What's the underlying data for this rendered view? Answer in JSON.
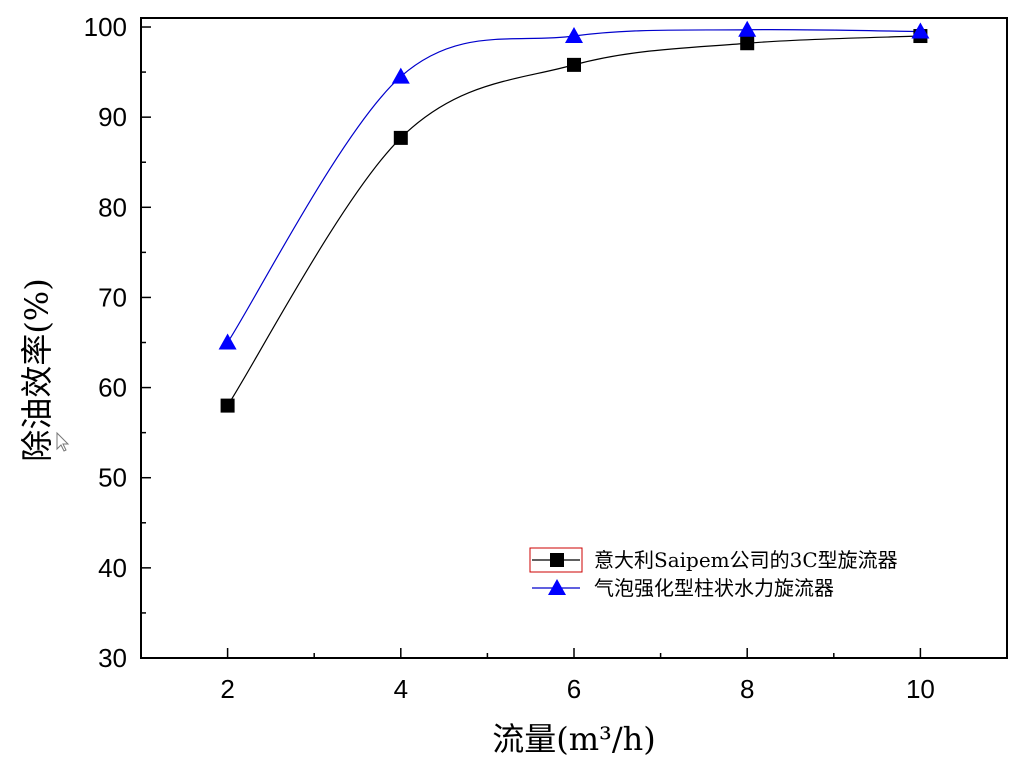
{
  "chart_data": {
    "type": "scatter",
    "xlabel": "流量(m³/h)",
    "ylabel": "除油效率(%)",
    "xlim": [
      1,
      11
    ],
    "ylim": [
      30,
      101
    ],
    "x_ticks": [
      2,
      4,
      6,
      8,
      10
    ],
    "y_ticks": [
      30,
      40,
      50,
      60,
      70,
      80,
      90,
      100
    ],
    "grid": false,
    "legend_position": "lower-right",
    "series": [
      {
        "name": "意大利Saipem公司的3C型旋流器",
        "marker": "square",
        "color": "#000000",
        "line_color": "#000000",
        "x": [
          2,
          4,
          6,
          8,
          10
        ],
        "y": [
          58,
          87.7,
          95.8,
          98.2,
          99
        ],
        "fit": "smooth"
      },
      {
        "name": "气泡强化型柱状水力旋流器",
        "marker": "triangle",
        "color": "#0000ff",
        "line_color": "#0000cc",
        "x": [
          2,
          4,
          6,
          8,
          10
        ],
        "y": [
          65,
          94.5,
          99,
          99.7,
          99.5
        ],
        "fit": "smooth"
      }
    ]
  }
}
